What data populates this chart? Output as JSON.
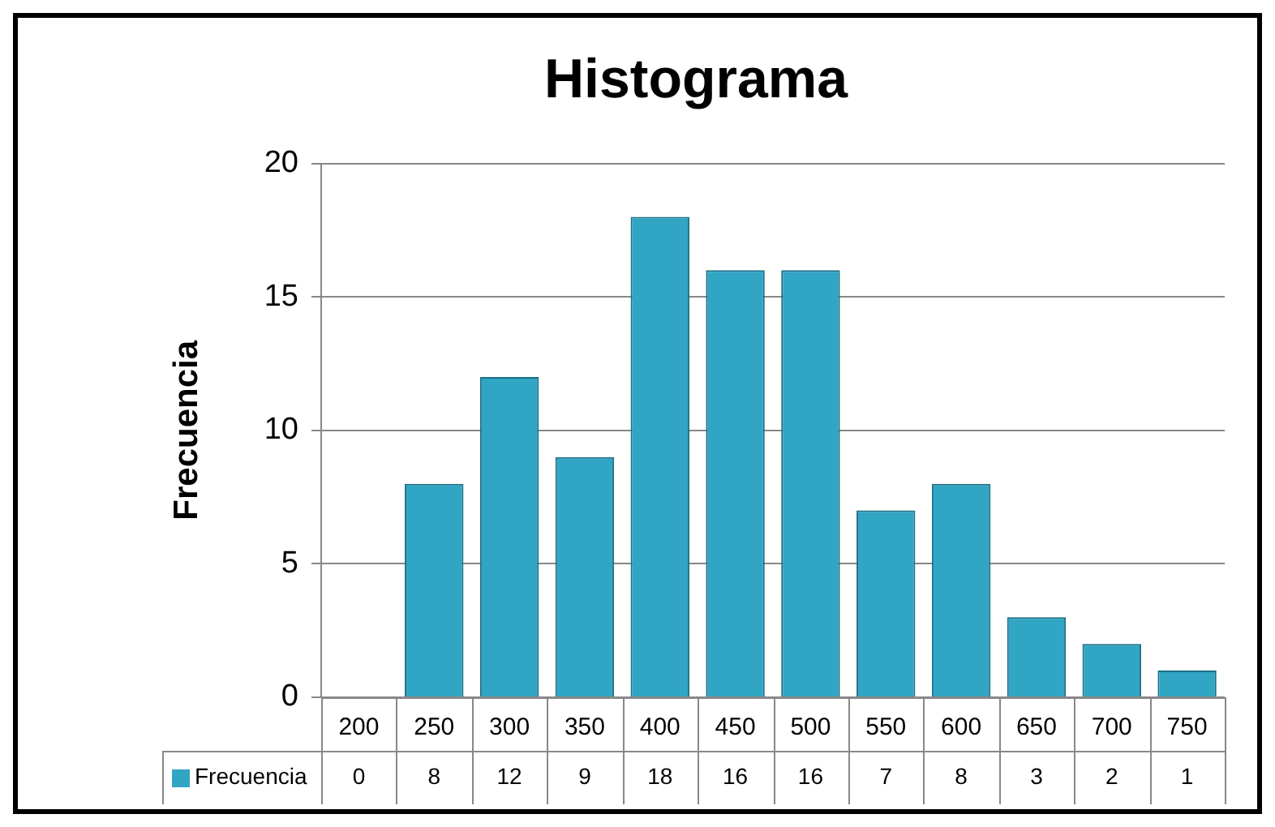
{
  "chart_data": {
    "type": "bar",
    "title": "Histograma",
    "ylabel": "Frecuencia",
    "categories": [
      "200",
      "250",
      "300",
      "350",
      "400",
      "450",
      "500",
      "550",
      "600",
      "650",
      "700",
      "750"
    ],
    "series": [
      {
        "name": "Frecuencia",
        "color": "#31a5c4",
        "values": [
          0,
          8,
          12,
          9,
          18,
          16,
          16,
          7,
          8,
          3,
          2,
          1
        ]
      }
    ],
    "ylim": [
      0,
      20
    ],
    "yticks": [
      0,
      5,
      10,
      15,
      20
    ],
    "grid": "y",
    "data_labels": true
  }
}
